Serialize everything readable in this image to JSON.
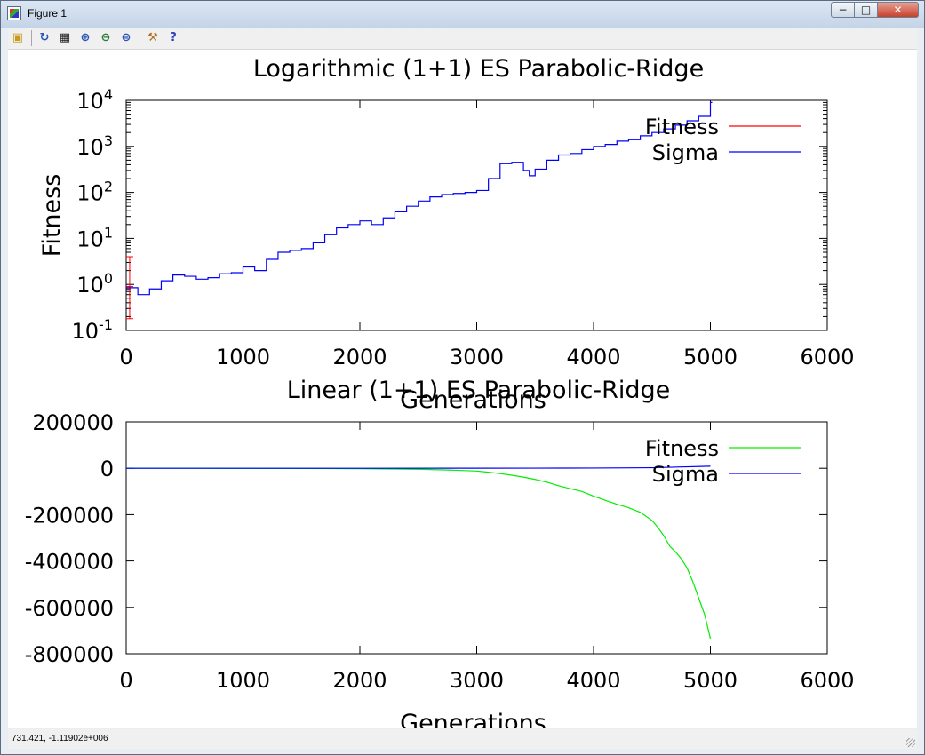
{
  "window": {
    "title": "Figure 1",
    "min_glyph": "−",
    "max_glyph": "□",
    "close_glyph": "✕"
  },
  "toolbar": {
    "items": [
      {
        "name": "open-icon",
        "glyph": "▣",
        "color": "#c89a20"
      },
      {
        "name": "refresh-icon",
        "glyph": "↻",
        "color": "#2a55b8"
      },
      {
        "name": "grid-icon",
        "glyph": "▦",
        "color": "#222222"
      },
      {
        "name": "zoom-in-icon",
        "glyph": "⊕",
        "color": "#2a55b8"
      },
      {
        "name": "zoom-out-icon",
        "glyph": "⊖",
        "color": "#2a7a3a"
      },
      {
        "name": "zoom-reset-icon",
        "glyph": "⊜",
        "color": "#2a55b8"
      },
      {
        "name": "settings-icon",
        "glyph": "⚒",
        "color": "#b07020"
      },
      {
        "name": "help-icon",
        "glyph": "?",
        "color": "#2a3fbf"
      }
    ]
  },
  "status": {
    "coords": "731.421, -1.11902e+006"
  },
  "chart_data": [
    {
      "type": "line",
      "title": "Logarithmic (1+1) ES Parabolic-Ridge",
      "xlabel": "Generations",
      "ylabel": "Fitness",
      "yscale": "log",
      "xlim": [
        0,
        6000
      ],
      "ylim": [
        0.1,
        10000
      ],
      "xticks": [
        0,
        1000,
        2000,
        3000,
        4000,
        5000,
        6000
      ],
      "xtick_labels": [
        "0",
        "1000",
        "2000",
        "3000",
        "4000",
        "5000",
        "6000"
      ],
      "yticks": [
        {
          "value": 0.1,
          "base": "10",
          "exp": "-1"
        },
        {
          "value": 1,
          "base": "10",
          "exp": "0"
        },
        {
          "value": 10,
          "base": "10",
          "exp": "1"
        },
        {
          "value": 100,
          "base": "10",
          "exp": "2"
        },
        {
          "value": 1000,
          "base": "10",
          "exp": "3"
        },
        {
          "value": 10000,
          "base": "10",
          "exp": "4"
        }
      ],
      "legend_position": "top-right",
      "series": [
        {
          "name": "Fitness",
          "color": "#ff0000",
          "style": "errorbar",
          "points": [
            {
              "x": 30,
              "y": 0.9,
              "lo": 0.18,
              "hi": 4.0
            }
          ]
        },
        {
          "name": "Sigma",
          "color": "#0000ff",
          "style": "steps",
          "x": [
            0,
            100,
            200,
            300,
            400,
            500,
            600,
            700,
            800,
            900,
            1000,
            1100,
            1200,
            1300,
            1400,
            1500,
            1600,
            1700,
            1800,
            1900,
            2000,
            2100,
            2200,
            2300,
            2400,
            2500,
            2600,
            2700,
            2800,
            2900,
            3000,
            3100,
            3200,
            3300,
            3400,
            3450,
            3500,
            3600,
            3700,
            3800,
            3900,
            4000,
            4100,
            4200,
            4300,
            4400,
            4500,
            4600,
            4700,
            4800,
            4900,
            5000
          ],
          "y": [
            0.85,
            0.6,
            0.8,
            1.2,
            1.6,
            1.5,
            1.3,
            1.4,
            1.7,
            1.8,
            2.4,
            2.0,
            3.5,
            5,
            5.5,
            6,
            8,
            12,
            17,
            20,
            24,
            20,
            28,
            38,
            50,
            65,
            80,
            90,
            95,
            100,
            110,
            200,
            420,
            450,
            300,
            230,
            320,
            500,
            650,
            700,
            850,
            1000,
            1100,
            1300,
            1400,
            1700,
            2000,
            2400,
            2900,
            3600,
            4500,
            9000
          ]
        }
      ]
    },
    {
      "type": "line",
      "title": "Linear (1+1) ES Parabolic-Ridge",
      "xlabel": "Generations",
      "ylabel": "",
      "xlim": [
        0,
        6000
      ],
      "ylim": [
        -800000,
        200000
      ],
      "xticks": [
        0,
        1000,
        2000,
        3000,
        4000,
        5000,
        6000
      ],
      "xtick_labels": [
        "0",
        "1000",
        "2000",
        "3000",
        "4000",
        "5000",
        "6000"
      ],
      "yticks": [
        -800000,
        -600000,
        -400000,
        -200000,
        0,
        200000
      ],
      "ytick_labels": [
        "-800000",
        "-600000",
        "-400000",
        "-200000",
        "0",
        "200000"
      ],
      "legend_position": "top-right",
      "series": [
        {
          "name": "Fitness",
          "color": "#00ee00",
          "style": "line",
          "x": [
            0,
            500,
            1000,
            1500,
            2000,
            2500,
            2800,
            3000,
            3100,
            3200,
            3300,
            3400,
            3500,
            3600,
            3700,
            3800,
            3900,
            4000,
            4100,
            4200,
            4300,
            4400,
            4500,
            4550,
            4600,
            4650,
            4700,
            4750,
            4800,
            4850,
            4900,
            4950,
            5000
          ],
          "y": [
            0,
            0,
            -200,
            -600,
            -1500,
            -4000,
            -8000,
            -12000,
            -17000,
            -23000,
            -30000,
            -38000,
            -48000,
            -60000,
            -75000,
            -88000,
            -100000,
            -120000,
            -138000,
            -155000,
            -170000,
            -190000,
            -225000,
            -255000,
            -290000,
            -335000,
            -360000,
            -390000,
            -430000,
            -490000,
            -560000,
            -630000,
            -735000
          ]
        },
        {
          "name": "Sigma",
          "color": "#0000ff",
          "style": "line",
          "x": [
            0,
            1000,
            2000,
            3000,
            3500,
            4000,
            4500,
            5000
          ],
          "y": [
            0,
            0,
            0,
            200,
            500,
            1000,
            2500,
            9000
          ]
        }
      ]
    }
  ]
}
